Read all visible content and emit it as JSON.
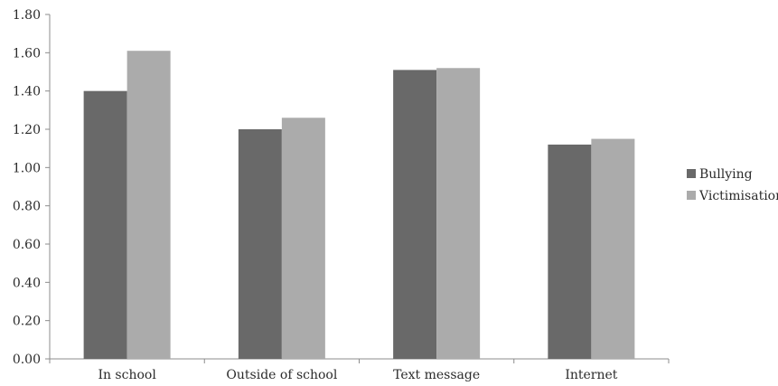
{
  "chart_data": {
    "type": "bar",
    "categories": [
      "In school",
      "Outside of school",
      "Text message",
      "Internet"
    ],
    "series": [
      {
        "name": "Bullying",
        "values": [
          1.4,
          1.2,
          1.51,
          1.12
        ],
        "color": "#696969"
      },
      {
        "name": "Victimisation",
        "values": [
          1.61,
          1.26,
          1.52,
          1.15
        ],
        "color": "#ababab"
      }
    ],
    "y_ticks": [
      "0.00",
      "0.20",
      "0.40",
      "0.60",
      "0.80",
      "1.00",
      "1.20",
      "1.40",
      "1.60",
      "1.80"
    ],
    "ylim": [
      0,
      1.8
    ],
    "title": "",
    "xlabel": "",
    "ylabel": "",
    "grid": false,
    "legend": "right"
  }
}
